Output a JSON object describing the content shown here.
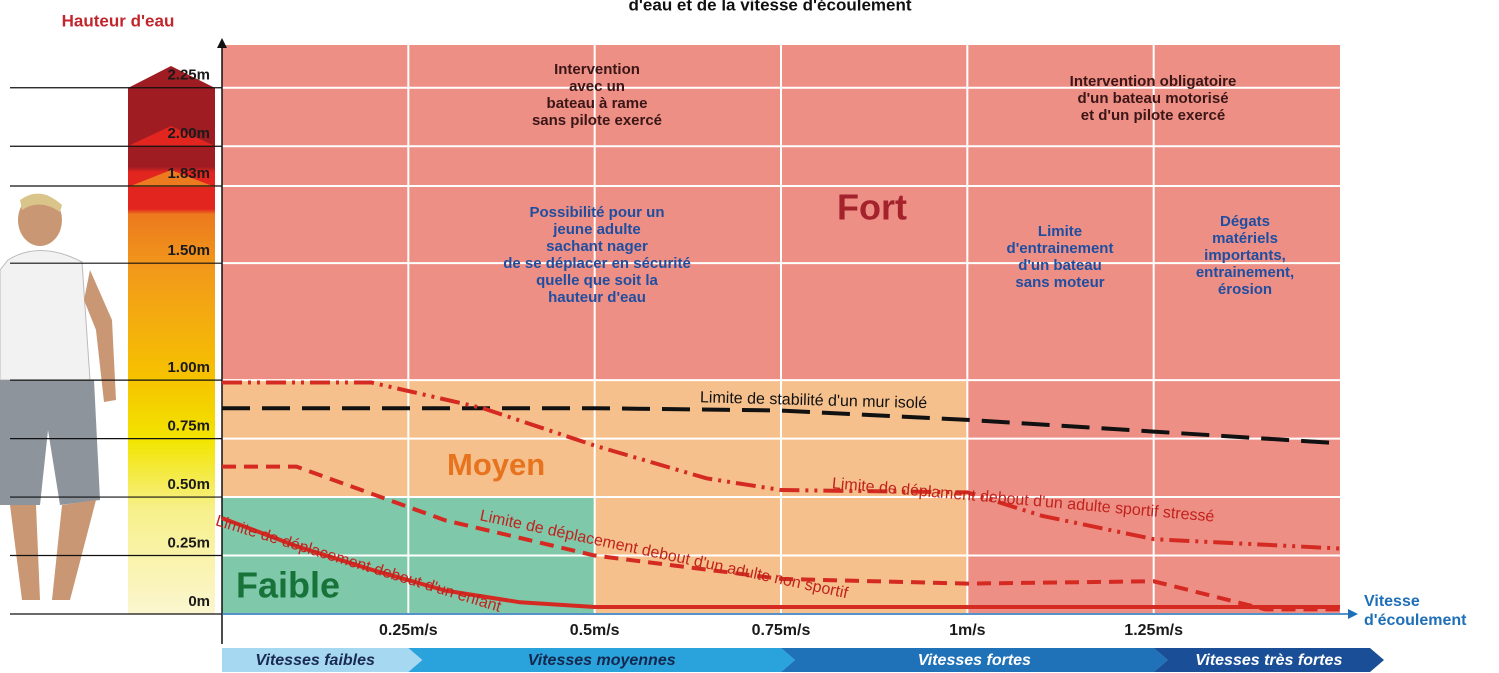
{
  "chart_data": {
    "type": "line",
    "title": "d'eau et de la vitesse d'écoulement",
    "y_label": "Hauteur d'eau",
    "x_label": [
      "Vitesse",
      "d'écoulement"
    ],
    "xlim": [
      0,
      1.5
    ],
    "ylim": [
      0,
      2.45
    ],
    "xticks": [
      {
        "value": 0.25,
        "label": "0.25m/s"
      },
      {
        "value": 0.5,
        "label": "0.5m/s"
      },
      {
        "value": 0.75,
        "label": "0.75m/s"
      },
      {
        "value": 1,
        "label": "1m/s"
      },
      {
        "value": 1.25,
        "label": "1.25m/s"
      }
    ],
    "yticks": [
      {
        "value": 0,
        "label": "0m"
      },
      {
        "value": 0.25,
        "label": "0.25m"
      },
      {
        "value": 0.5,
        "label": "0.50m"
      },
      {
        "value": 0.75,
        "label": "0.75m"
      },
      {
        "value": 1,
        "label": "1.00m"
      },
      {
        "value": 1.5,
        "label": "1.50m"
      },
      {
        "value": 1.83,
        "label": "1.83m"
      },
      {
        "value": 2,
        "label": "2.00m"
      },
      {
        "value": 2.25,
        "label": "2.25m"
      }
    ],
    "zones": [
      {
        "label": "Faible",
        "color": "#7fc8a9",
        "text_color": "#17733a"
      },
      {
        "label": "Moyen",
        "color": "#f5c08c",
        "text_color": "#e8731e"
      },
      {
        "label": "Fort",
        "color": "#ee8f86",
        "text_color": "#a3222b"
      }
    ],
    "series": [
      {
        "name": "Limite de stabilité d'un mur isolé",
        "color": "#111111",
        "style": "longdash",
        "x": [
          0,
          0.25,
          0.5,
          0.75,
          1,
          1.25,
          1.5
        ],
        "values": [
          0.88,
          0.88,
          0.88,
          0.87,
          0.83,
          0.78,
          0.73
        ]
      },
      {
        "name": "Limite de déplament debout d'un adulte sportif stressé",
        "color": "#d42a22",
        "style": "dashdot",
        "x": [
          0,
          0.2,
          0.35,
          0.5,
          0.65,
          0.75,
          1,
          1.1,
          1.25,
          1.5
        ],
        "values": [
          0.99,
          0.99,
          0.88,
          0.72,
          0.58,
          0.53,
          0.52,
          0.42,
          0.32,
          0.28
        ]
      },
      {
        "name": "Limite de déplacement debout d'un adulte non sportif",
        "color": "#d42a22",
        "style": "dashed",
        "x": [
          0,
          0.1,
          0.3,
          0.5,
          0.75,
          1,
          1.25,
          1.35,
          1.4,
          1.5
        ],
        "values": [
          0.63,
          0.63,
          0.4,
          0.25,
          0.15,
          0.13,
          0.14,
          0.06,
          0.02,
          0.02
        ]
      },
      {
        "name": "Limite de déplacement debout d'un enfant",
        "color": "#d42a22",
        "style": "solid",
        "x": [
          0,
          0.1,
          0.2,
          0.3,
          0.4,
          0.5,
          1.5
        ],
        "values": [
          0.41,
          0.29,
          0.19,
          0.1,
          0.05,
          0.03,
          0.03
        ]
      }
    ],
    "annotations": [
      {
        "lines": [
          "Intervention",
          "avec un",
          "bateau à rame",
          "sans pilote exercé"
        ],
        "color": "#3a1616"
      },
      {
        "lines": [
          "Intervention obligatoire",
          "d'un bateau motorisé",
          "et d'un pilote exercé"
        ],
        "color": "#3a1616"
      },
      {
        "lines": [
          "Possibilité pour un",
          "jeune adulte",
          "sachant nager",
          "de se déplacer en sécurité",
          "quelle que soit la",
          "hauteur d'eau"
        ],
        "color": "#1f4ea0"
      },
      {
        "lines": [
          "Limite",
          "d'entrainement",
          "d'un bateau",
          "sans moteur"
        ],
        "color": "#1f4ea0"
      },
      {
        "lines": [
          "Dégats",
          "matériels",
          "importants,",
          "entrainement,",
          "érosion"
        ],
        "color": "#1f4ea0"
      }
    ],
    "speed_bands": [
      {
        "label": "Vitesses faibles",
        "color": "#a6d8f2",
        "text_color": "#1a2a50"
      },
      {
        "label": "Vitesses moyennes",
        "color": "#2aa2dc",
        "text_color": "#14284e"
      },
      {
        "label": "Vitesses fortes",
        "color": "#1f72b8",
        "text_color": "#ffffff"
      },
      {
        "label": "Vitesses très fortes",
        "color": "#1a4f97",
        "text_color": "#ffffff"
      }
    ]
  }
}
